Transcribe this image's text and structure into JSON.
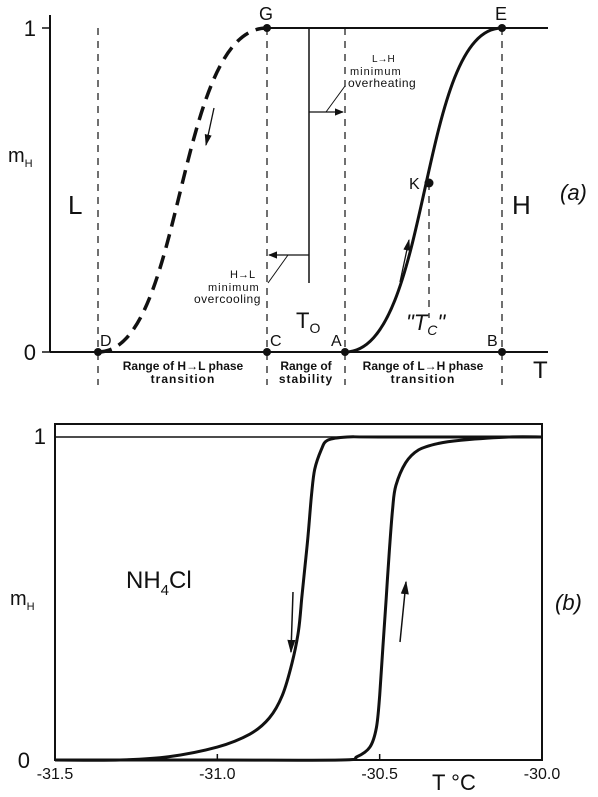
{
  "chart_data": [
    {
      "type": "line",
      "panel_label": "(a)",
      "ylabel": "m",
      "ylabel_sub": "H",
      "xlabel": "T",
      "ylim": [
        0,
        1
      ],
      "ytick_labels": [
        "0",
        "1"
      ],
      "phase_low_label": "L",
      "phase_high_label": "H",
      "point_labels": {
        "G": "G",
        "E": "E",
        "K": "K",
        "D": "D",
        "C": "C",
        "A": "A",
        "B": "B"
      },
      "T0_label": "T",
      "T0_sub": "O",
      "Tc_label": "\"T",
      "Tc_sub": "C",
      "Tc_close": "\"",
      "annotations": {
        "heating_title": "L→H",
        "heating_line2": "minimum",
        "heating_line3": "overheating",
        "cooling_title": "H→L",
        "cooling_line2": "minimum",
        "cooling_line3": "overcooling"
      },
      "ranges": {
        "hl_line1": "Range of H→L phase",
        "hl_line2": "transition",
        "stab_line1": "Range of",
        "stab_line2": "stability",
        "lh_line1": "Range of L→H phase",
        "lh_line2": "transition"
      },
      "series": [
        {
          "style": "dashed",
          "direction": "cooling"
        },
        {
          "style": "solid",
          "direction": "heating"
        }
      ]
    },
    {
      "type": "line",
      "panel_label": "(b)",
      "ylabel": "m",
      "ylabel_sub": "H",
      "xlabel": "T °C",
      "compound": {
        "pre": "NH",
        "sub": "4",
        "post": "Cl"
      },
      "ylim": [
        0,
        1
      ],
      "xlim": [
        -31.5,
        -30.0
      ],
      "ytick_labels": [
        "0",
        "1"
      ],
      "xtick_values": [
        -31.5,
        -31.0,
        -30.5,
        -30.0
      ],
      "xtick_labels": [
        "-31.5",
        "-31.0",
        "-30.5",
        "-30.0"
      ],
      "series": [
        {
          "direction": "cooling",
          "x": [
            -31.5,
            -31.3,
            -31.15,
            -31.0,
            -30.9,
            -30.84,
            -30.8,
            -30.77,
            -30.75,
            -30.74,
            -30.73,
            -30.72,
            -30.71,
            -30.7,
            -30.68,
            -30.66,
            -30.6,
            -30.5,
            -30.0
          ],
          "y": [
            0.0,
            0.0,
            0.01,
            0.04,
            0.08,
            0.13,
            0.2,
            0.3,
            0.4,
            0.5,
            0.6,
            0.7,
            0.82,
            0.9,
            0.96,
            0.99,
            1.0,
            1.0,
            1.0
          ]
        },
        {
          "direction": "heating",
          "x": [
            -31.5,
            -31.0,
            -30.62,
            -30.57,
            -30.53,
            -30.51,
            -30.5,
            -30.49,
            -30.48,
            -30.47,
            -30.46,
            -30.45,
            -30.42,
            -30.38,
            -30.32,
            -30.25,
            -30.1,
            -30.0
          ],
          "y": [
            0.0,
            0.0,
            0.0,
            0.01,
            0.04,
            0.1,
            0.2,
            0.35,
            0.5,
            0.65,
            0.78,
            0.85,
            0.92,
            0.96,
            0.98,
            0.99,
            1.0,
            1.0
          ]
        }
      ]
    }
  ]
}
